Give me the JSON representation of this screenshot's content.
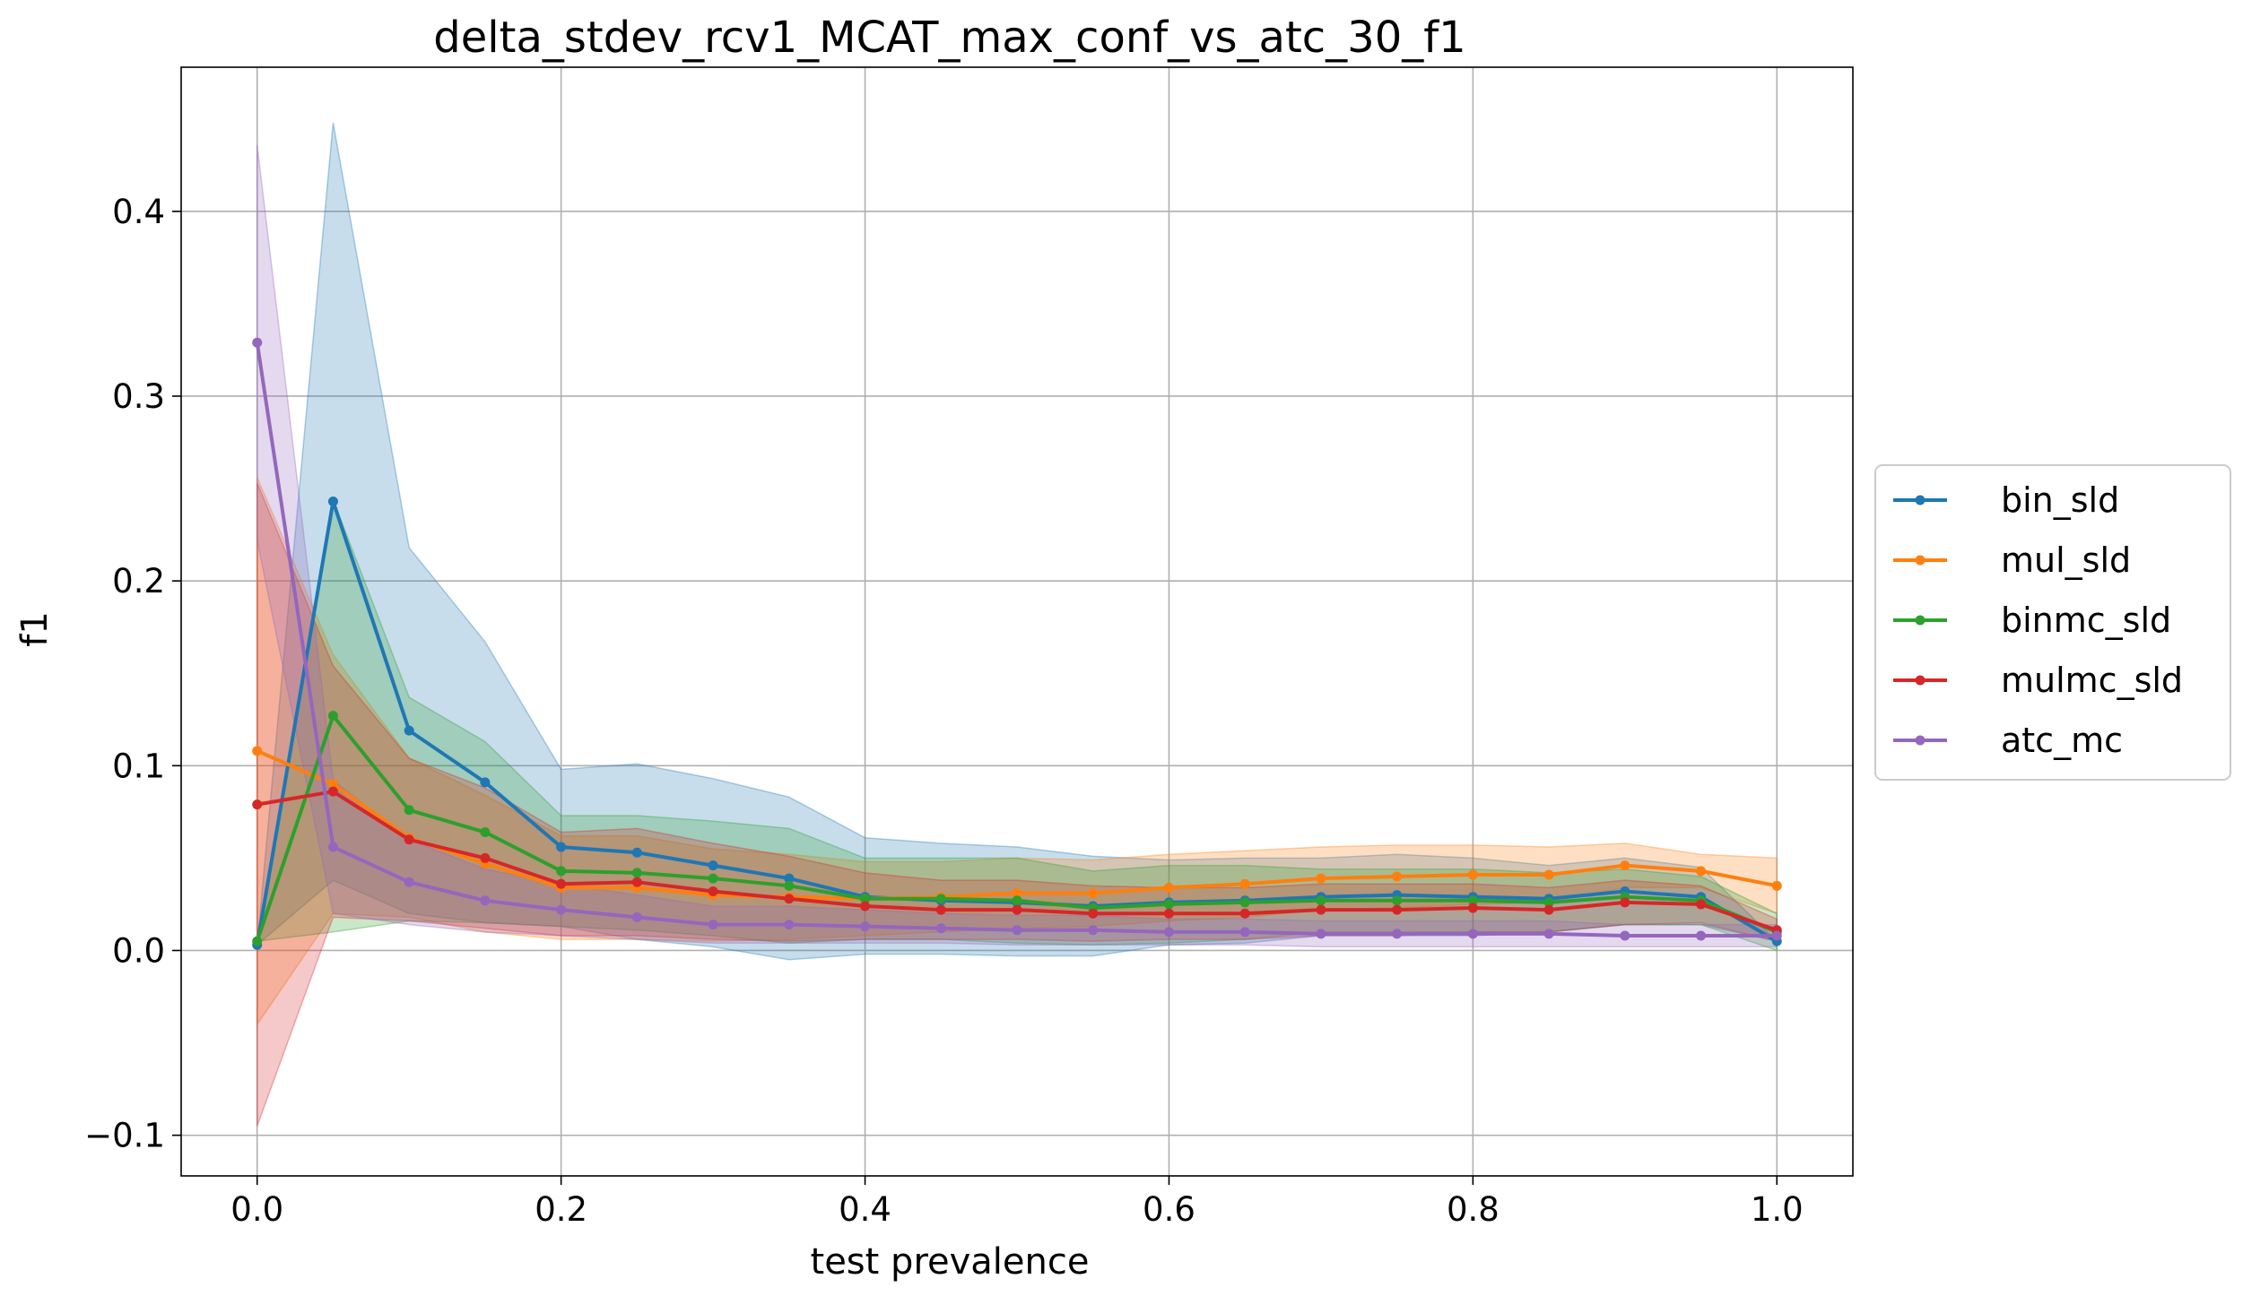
{
  "chart_data": {
    "type": "line",
    "title": "delta_stdev_rcv1_MCAT_max_conf_vs_atc_30_f1",
    "xlabel": "test prevalence",
    "ylabel": "f1",
    "xlim": [
      -0.05,
      1.05
    ],
    "ylim": [
      -0.122,
      0.478
    ],
    "xticks": [
      0.0,
      0.2,
      0.4,
      0.6,
      0.8,
      1.0
    ],
    "xtick_labels": [
      "0.0",
      "0.2",
      "0.4",
      "0.6",
      "0.8",
      "1.0"
    ],
    "yticks": [
      -0.1,
      0.0,
      0.1,
      0.2,
      0.3,
      0.4
    ],
    "ytick_labels": [
      "−0.1",
      "0.0",
      "0.1",
      "0.2",
      "0.3",
      "0.4"
    ],
    "grid": true,
    "legend_position": "outside-right",
    "x": [
      0.0,
      0.05,
      0.1,
      0.15,
      0.2,
      0.25,
      0.3,
      0.35,
      0.4,
      0.45,
      0.5,
      0.55,
      0.6,
      0.65,
      0.7,
      0.75,
      0.8,
      0.85,
      0.9,
      0.95,
      1.0
    ],
    "series": [
      {
        "name": "bin_sld",
        "color": "#1f77b4",
        "values": [
          0.003,
          0.243,
          0.119,
          0.091,
          0.056,
          0.053,
          0.046,
          0.039,
          0.029,
          0.027,
          0.026,
          0.024,
          0.026,
          0.027,
          0.029,
          0.03,
          0.029,
          0.028,
          0.032,
          0.029,
          0.005
        ],
        "lower": [
          0.003,
          0.038,
          0.02,
          0.015,
          0.013,
          0.006,
          0.002,
          -0.005,
          -0.002,
          -0.002,
          -0.003,
          -0.003,
          0.003,
          0.004,
          0.008,
          0.008,
          0.008,
          0.01,
          0.014,
          0.014,
          0.005
        ],
        "upper": [
          0.003,
          0.448,
          0.218,
          0.167,
          0.098,
          0.101,
          0.093,
          0.083,
          0.061,
          0.058,
          0.056,
          0.051,
          0.049,
          0.05,
          0.05,
          0.052,
          0.05,
          0.046,
          0.05,
          0.045,
          0.005
        ]
      },
      {
        "name": "mul_sld",
        "color": "#ff7f0e",
        "values": [
          0.108,
          0.09,
          0.061,
          0.047,
          0.034,
          0.034,
          0.03,
          0.029,
          0.028,
          0.029,
          0.031,
          0.031,
          0.034,
          0.036,
          0.039,
          0.04,
          0.041,
          0.041,
          0.046,
          0.043,
          0.035
        ],
        "lower": [
          -0.04,
          0.02,
          0.018,
          0.01,
          0.006,
          0.006,
          0.005,
          0.006,
          0.008,
          0.01,
          0.012,
          0.013,
          0.016,
          0.018,
          0.022,
          0.023,
          0.025,
          0.026,
          0.034,
          0.034,
          0.02
        ],
        "upper": [
          0.256,
          0.16,
          0.104,
          0.084,
          0.062,
          0.062,
          0.055,
          0.052,
          0.048,
          0.048,
          0.05,
          0.049,
          0.052,
          0.054,
          0.056,
          0.057,
          0.057,
          0.056,
          0.058,
          0.052,
          0.05
        ]
      },
      {
        "name": "binmc_sld",
        "color": "#2ca02c",
        "values": [
          0.005,
          0.127,
          0.076,
          0.064,
          0.043,
          0.042,
          0.039,
          0.035,
          0.028,
          0.028,
          0.027,
          0.023,
          0.025,
          0.026,
          0.027,
          0.027,
          0.027,
          0.026,
          0.029,
          0.027,
          0.01
        ],
        "lower": [
          0.005,
          0.01,
          0.016,
          0.015,
          0.013,
          0.011,
          0.008,
          0.004,
          0.006,
          0.006,
          0.004,
          0.003,
          0.004,
          0.006,
          0.01,
          0.01,
          0.01,
          0.01,
          0.014,
          0.014,
          0.0
        ],
        "upper": [
          0.005,
          0.244,
          0.137,
          0.113,
          0.073,
          0.073,
          0.07,
          0.066,
          0.05,
          0.05,
          0.05,
          0.043,
          0.046,
          0.046,
          0.044,
          0.044,
          0.044,
          0.042,
          0.044,
          0.04,
          0.02
        ]
      },
      {
        "name": "mulmc_sld",
        "color": "#d62728",
        "values": [
          0.079,
          0.086,
          0.06,
          0.05,
          0.036,
          0.037,
          0.032,
          0.028,
          0.024,
          0.022,
          0.022,
          0.02,
          0.02,
          0.02,
          0.022,
          0.022,
          0.023,
          0.022,
          0.026,
          0.025,
          0.011
        ],
        "lower": [
          -0.095,
          0.018,
          0.016,
          0.012,
          0.008,
          0.008,
          0.006,
          0.005,
          0.006,
          0.006,
          0.006,
          0.005,
          0.006,
          0.006,
          0.008,
          0.008,
          0.01,
          0.01,
          0.014,
          0.015,
          0.005
        ],
        "upper": [
          0.253,
          0.154,
          0.104,
          0.088,
          0.064,
          0.066,
          0.058,
          0.051,
          0.042,
          0.038,
          0.038,
          0.035,
          0.034,
          0.034,
          0.036,
          0.036,
          0.036,
          0.034,
          0.038,
          0.035,
          0.017
        ]
      },
      {
        "name": "atc_mc",
        "color": "#9467bd",
        "values": [
          0.329,
          0.056,
          0.037,
          0.027,
          0.022,
          0.018,
          0.014,
          0.014,
          0.013,
          0.012,
          0.011,
          0.011,
          0.01,
          0.01,
          0.009,
          0.009,
          0.009,
          0.009,
          0.008,
          0.008,
          0.008
        ],
        "lower": [
          0.222,
          0.02,
          0.014,
          0.01,
          0.008,
          0.006,
          0.004,
          0.004,
          0.004,
          0.004,
          0.003,
          0.003,
          0.003,
          0.003,
          0.002,
          0.002,
          0.002,
          0.002,
          0.002,
          0.002,
          0.002
        ],
        "upper": [
          0.436,
          0.092,
          0.06,
          0.044,
          0.036,
          0.03,
          0.024,
          0.024,
          0.022,
          0.02,
          0.019,
          0.019,
          0.017,
          0.017,
          0.016,
          0.016,
          0.016,
          0.016,
          0.014,
          0.014,
          0.014
        ]
      }
    ]
  }
}
